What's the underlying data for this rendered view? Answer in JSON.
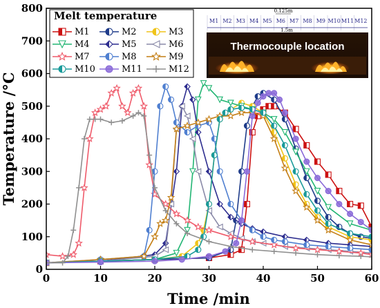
{
  "chart_data": {
    "type": "line",
    "xlabel": "Time /min",
    "ylabel": "Temperature /°C",
    "xlim": [
      0,
      60
    ],
    "ylim": [
      0,
      800
    ],
    "xticks": [
      0,
      10,
      20,
      30,
      40,
      50,
      60
    ],
    "yticks": [
      0,
      100,
      200,
      300,
      400,
      500,
      600,
      700,
      800
    ],
    "grid": false,
    "legend_title": "Melt temperature",
    "legend_position": "top-left",
    "series": [
      {
        "name": "M1",
        "color": "#cc1111",
        "marker": "square",
        "x": [
          0,
          10,
          20,
          30,
          34,
          36,
          37,
          38,
          39,
          40,
          41,
          42,
          44,
          46,
          48,
          50,
          52,
          54,
          56,
          58,
          60
        ],
        "y": [
          20,
          25,
          30,
          35,
          45,
          60,
          200,
          420,
          470,
          490,
          500,
          500,
          480,
          430,
          380,
          330,
          290,
          240,
          200,
          195,
          130
        ]
      },
      {
        "name": "M2",
        "color": "#1f3c8a",
        "marker": "circle-half",
        "x": [
          0,
          10,
          20,
          30,
          34,
          35,
          36,
          37,
          38,
          39,
          40,
          42,
          44,
          46,
          48,
          50,
          52,
          54,
          56,
          58,
          60
        ],
        "y": [
          20,
          25,
          30,
          35,
          60,
          150,
          300,
          440,
          500,
          530,
          540,
          520,
          460,
          370,
          280,
          210,
          160,
          130,
          110,
          100,
          95
        ]
      },
      {
        "name": "M3",
        "color": "#f0c419",
        "marker": "circle-half",
        "x": [
          0,
          10,
          20,
          25,
          28,
          29,
          30,
          31,
          32,
          34,
          36,
          38,
          40,
          42,
          44,
          46,
          48,
          50,
          52,
          56,
          60
        ],
        "y": [
          20,
          25,
          30,
          40,
          80,
          120,
          200,
          350,
          460,
          490,
          510,
          500,
          480,
          420,
          340,
          260,
          200,
          160,
          130,
          100,
          90
        ]
      },
      {
        "name": "M4",
        "color": "#22b573",
        "marker": "triangle-down",
        "x": [
          0,
          10,
          20,
          24,
          26,
          27,
          28,
          29,
          30,
          32,
          34,
          36,
          38,
          40,
          42,
          44,
          46,
          48,
          50,
          52,
          56,
          60
        ],
        "y": [
          20,
          25,
          30,
          50,
          120,
          300,
          520,
          570,
          555,
          520,
          510,
          500,
          490,
          480,
          460,
          420,
          360,
          300,
          240,
          190,
          140,
          120
        ]
      },
      {
        "name": "M5",
        "color": "#2d2d8f",
        "marker": "diamond",
        "x": [
          0,
          10,
          20,
          22,
          24,
          25,
          26,
          27,
          28,
          30,
          32,
          34,
          36,
          38,
          40,
          44,
          48,
          52,
          56,
          60
        ],
        "y": [
          20,
          25,
          45,
          80,
          300,
          500,
          560,
          520,
          420,
          300,
          200,
          160,
          140,
          125,
          115,
          100,
          90,
          80,
          75,
          70
        ]
      },
      {
        "name": "M6",
        "color": "#8a8aa8",
        "marker": "triangle-left",
        "x": [
          0,
          10,
          20,
          22,
          23,
          24,
          25,
          26,
          27,
          28,
          30,
          32,
          34,
          36,
          38,
          40,
          44,
          48,
          52,
          56,
          60
        ],
        "y": [
          20,
          25,
          40,
          60,
          200,
          430,
          500,
          470,
          400,
          300,
          180,
          130,
          110,
          95,
          85,
          80,
          70,
          65,
          60,
          55,
          50
        ]
      },
      {
        "name": "M7",
        "color": "#ef5a6a",
        "marker": "star",
        "x": [
          0,
          3,
          5,
          6,
          7,
          8,
          9,
          10,
          11,
          12,
          13,
          14,
          15,
          16,
          17,
          18,
          19,
          20,
          22,
          24,
          26,
          28,
          30,
          34,
          38,
          42,
          46,
          50,
          54,
          58,
          60
        ],
        "y": [
          45,
          40,
          45,
          80,
          250,
          400,
          480,
          490,
          500,
          540,
          555,
          500,
          480,
          540,
          555,
          500,
          320,
          230,
          200,
          170,
          150,
          130,
          120,
          100,
          85,
          75,
          65,
          60,
          55,
          50,
          45
        ]
      },
      {
        "name": "M8",
        "color": "#4f7fd0",
        "marker": "circle-half",
        "x": [
          0,
          10,
          18,
          19,
          20,
          21,
          22,
          23,
          24,
          26,
          28,
          30,
          31,
          32,
          34,
          36,
          38,
          40,
          42,
          44,
          48,
          52,
          56,
          60
        ],
        "y": [
          20,
          30,
          40,
          120,
          300,
          500,
          560,
          520,
          450,
          420,
          440,
          450,
          400,
          300,
          200,
          150,
          120,
          100,
          90,
          85,
          75,
          70,
          65,
          60
        ]
      },
      {
        "name": "M9",
        "color": "#c47e14",
        "marker": "star",
        "x": [
          0,
          10,
          18,
          20,
          21,
          22,
          23,
          24,
          26,
          28,
          30,
          32,
          34,
          36,
          38,
          40,
          42,
          44,
          46,
          48,
          50,
          52,
          56,
          60
        ],
        "y": [
          20,
          30,
          40,
          100,
          140,
          150,
          220,
          430,
          440,
          450,
          460,
          470,
          470,
          480,
          480,
          470,
          400,
          310,
          240,
          190,
          150,
          120,
          90,
          75
        ]
      },
      {
        "name": "M10",
        "color": "#1a9a9a",
        "marker": "circle-half",
        "x": [
          0,
          10,
          20,
          26,
          28,
          29,
          30,
          31,
          32,
          33,
          34,
          36,
          38,
          40,
          42,
          44,
          46,
          48,
          50,
          52,
          56,
          60
        ],
        "y": [
          20,
          25,
          30,
          40,
          60,
          100,
          200,
          350,
          460,
          480,
          490,
          495,
          490,
          480,
          440,
          380,
          300,
          230,
          180,
          140,
          110,
          100
        ]
      },
      {
        "name": "M11",
        "color": "#8a6ad8",
        "marker": "circle",
        "x": [
          0,
          10,
          20,
          25,
          30,
          33,
          35,
          36,
          37,
          38,
          39,
          40,
          41,
          42,
          43,
          44,
          46,
          48,
          50,
          52,
          54,
          56,
          58,
          60
        ],
        "y": [
          20,
          22,
          25,
          30,
          40,
          55,
          80,
          150,
          300,
          470,
          510,
          530,
          540,
          540,
          520,
          480,
          400,
          330,
          280,
          240,
          200,
          170,
          145,
          120
        ]
      },
      {
        "name": "M12",
        "color": "#8f8f8f",
        "marker": "plus",
        "x": [
          0,
          3,
          4,
          5,
          6,
          7,
          8,
          9,
          10,
          12,
          14,
          16,
          17,
          18,
          19,
          20,
          22,
          24,
          26,
          30,
          34,
          38,
          42,
          46,
          50,
          54,
          58,
          60
        ],
        "y": [
          20,
          20,
          40,
          120,
          250,
          400,
          460,
          460,
          460,
          450,
          455,
          470,
          480,
          470,
          350,
          250,
          180,
          140,
          110,
          85,
          70,
          60,
          55,
          50,
          45,
          42,
          40,
          38
        ]
      }
    ]
  },
  "inset": {
    "sensor_labels": [
      "M1",
      "M2",
      "M3",
      "M4",
      "M5",
      "M6",
      "M7",
      "M8",
      "M9",
      "M10",
      "M11",
      "M12"
    ],
    "spacing_label": "0.125m",
    "length_label": "1.5m",
    "caption": "Thermocouple location"
  }
}
